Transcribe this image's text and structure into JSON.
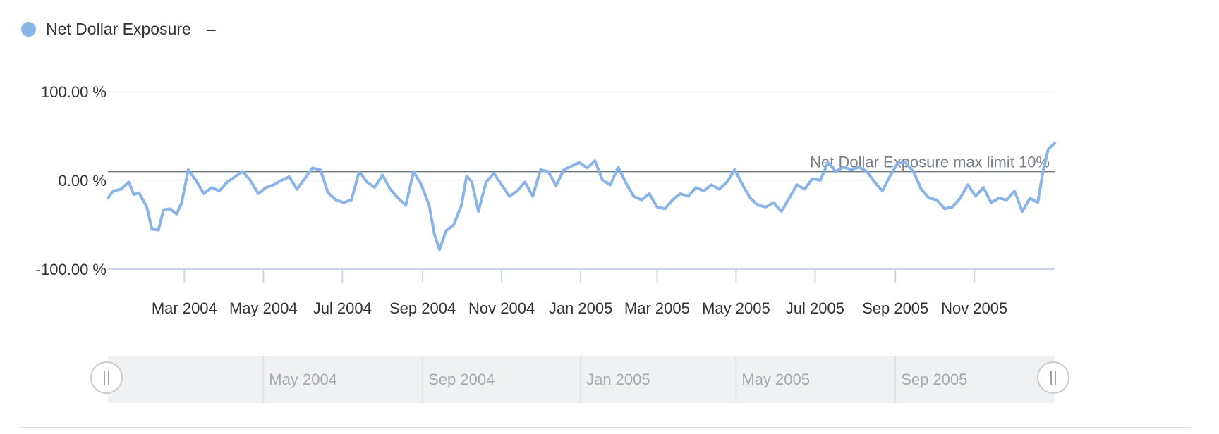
{
  "legend": {
    "label": "Net Dollar Exposure",
    "dash": "–",
    "color": "#8ab4e8"
  },
  "plot_line": {
    "label": "Net Dollar Exposure max limit 10%",
    "value": 10,
    "color": "#707880"
  },
  "navigator": {
    "labels": [
      {
        "date": "2004-05-01",
        "text": "May 2004"
      },
      {
        "date": "2004-09-01",
        "text": "Sep 2004"
      },
      {
        "date": "2005-01-01",
        "text": "Jan 2005"
      },
      {
        "date": "2005-05-01",
        "text": "May 2005"
      },
      {
        "date": "2005-09-01",
        "text": "Sep 2005"
      }
    ]
  },
  "chart_data": {
    "type": "line",
    "x_start": "2004-01-02",
    "x_end": "2006-01-02",
    "ylim": [
      -100,
      100
    ],
    "y_ticks": [
      {
        "value": 100,
        "label": "100.00 %"
      },
      {
        "value": 0,
        "label": "0.00 %"
      },
      {
        "value": -100,
        "label": "-100.00 %"
      }
    ],
    "x_ticks": [
      {
        "date": "2004-03-01",
        "label": "Mar 2004"
      },
      {
        "date": "2004-05-01",
        "label": "May 2004"
      },
      {
        "date": "2004-07-01",
        "label": "Jul 2004"
      },
      {
        "date": "2004-09-01",
        "label": "Sep 2004"
      },
      {
        "date": "2004-11-01",
        "label": "Nov 2004"
      },
      {
        "date": "2005-01-01",
        "label": "Jan 2005"
      },
      {
        "date": "2005-03-01",
        "label": "Mar 2005"
      },
      {
        "date": "2005-05-01",
        "label": "May 2005"
      },
      {
        "date": "2005-07-01",
        "label": "Jul 2005"
      },
      {
        "date": "2005-09-01",
        "label": "Sep 2005"
      },
      {
        "date": "2005-11-01",
        "label": "Nov 2005"
      }
    ],
    "grid": true,
    "series": [
      {
        "name": "Net Dollar Exposure",
        "color": "#8ab4e8",
        "points": [
          [
            "2004-01-02",
            -20
          ],
          [
            "2004-01-06",
            -12
          ],
          [
            "2004-01-12",
            -10
          ],
          [
            "2004-01-18",
            -2
          ],
          [
            "2004-01-22",
            -16
          ],
          [
            "2004-01-26",
            -14
          ],
          [
            "2004-02-01",
            -30
          ],
          [
            "2004-02-05",
            -55
          ],
          [
            "2004-02-10",
            -56
          ],
          [
            "2004-02-14",
            -33
          ],
          [
            "2004-02-19",
            -32
          ],
          [
            "2004-02-24",
            -38
          ],
          [
            "2004-02-28",
            -25
          ],
          [
            "2004-03-04",
            12
          ],
          [
            "2004-03-10",
            0
          ],
          [
            "2004-03-16",
            -15
          ],
          [
            "2004-03-22",
            -8
          ],
          [
            "2004-03-28",
            -12
          ],
          [
            "2004-04-03",
            -2
          ],
          [
            "2004-04-09",
            4
          ],
          [
            "2004-04-15",
            10
          ],
          [
            "2004-04-21",
            0
          ],
          [
            "2004-04-27",
            -15
          ],
          [
            "2004-05-03",
            -8
          ],
          [
            "2004-05-09",
            -5
          ],
          [
            "2004-05-15",
            0
          ],
          [
            "2004-05-21",
            4
          ],
          [
            "2004-05-27",
            -10
          ],
          [
            "2004-06-02",
            2
          ],
          [
            "2004-06-08",
            14
          ],
          [
            "2004-06-14",
            12
          ],
          [
            "2004-06-20",
            -14
          ],
          [
            "2004-06-26",
            -22
          ],
          [
            "2004-07-02",
            -25
          ],
          [
            "2004-07-08",
            -22
          ],
          [
            "2004-07-14",
            10
          ],
          [
            "2004-07-20",
            -2
          ],
          [
            "2004-07-26",
            -8
          ],
          [
            "2004-08-01",
            6
          ],
          [
            "2004-08-07",
            -10
          ],
          [
            "2004-08-13",
            -20
          ],
          [
            "2004-08-19",
            -28
          ],
          [
            "2004-08-25",
            10
          ],
          [
            "2004-08-31",
            -5
          ],
          [
            "2004-09-06",
            -28
          ],
          [
            "2004-09-10",
            -60
          ],
          [
            "2004-09-14",
            -78
          ],
          [
            "2004-09-19",
            -57
          ],
          [
            "2004-09-25",
            -50
          ],
          [
            "2004-10-01",
            -28
          ],
          [
            "2004-10-05",
            5
          ],
          [
            "2004-10-09",
            -2
          ],
          [
            "2004-10-14",
            -35
          ],
          [
            "2004-10-20",
            -2
          ],
          [
            "2004-10-26",
            8
          ],
          [
            "2004-11-01",
            -5
          ],
          [
            "2004-11-07",
            -18
          ],
          [
            "2004-11-13",
            -12
          ],
          [
            "2004-11-19",
            -2
          ],
          [
            "2004-11-25",
            -18
          ],
          [
            "2004-12-01",
            12
          ],
          [
            "2004-12-07",
            10
          ],
          [
            "2004-12-13",
            -6
          ],
          [
            "2004-12-19",
            12
          ],
          [
            "2004-12-25",
            16
          ],
          [
            "2004-12-31",
            20
          ],
          [
            "2005-01-06",
            14
          ],
          [
            "2005-01-12",
            22
          ],
          [
            "2005-01-18",
            0
          ],
          [
            "2005-01-24",
            -5
          ],
          [
            "2005-01-30",
            15
          ],
          [
            "2005-02-05",
            -3
          ],
          [
            "2005-02-11",
            -18
          ],
          [
            "2005-02-17",
            -22
          ],
          [
            "2005-02-23",
            -15
          ],
          [
            "2005-03-01",
            -30
          ],
          [
            "2005-03-07",
            -32
          ],
          [
            "2005-03-13",
            -22
          ],
          [
            "2005-03-19",
            -15
          ],
          [
            "2005-03-25",
            -18
          ],
          [
            "2005-03-31",
            -8
          ],
          [
            "2005-04-06",
            -12
          ],
          [
            "2005-04-12",
            -5
          ],
          [
            "2005-04-18",
            -10
          ],
          [
            "2005-04-24",
            -2
          ],
          [
            "2005-04-30",
            12
          ],
          [
            "2005-05-06",
            -5
          ],
          [
            "2005-05-12",
            -20
          ],
          [
            "2005-05-18",
            -28
          ],
          [
            "2005-05-24",
            -30
          ],
          [
            "2005-05-30",
            -25
          ],
          [
            "2005-06-05",
            -35
          ],
          [
            "2005-06-11",
            -20
          ],
          [
            "2005-06-17",
            -5
          ],
          [
            "2005-06-23",
            -10
          ],
          [
            "2005-06-29",
            2
          ],
          [
            "2005-07-05",
            0
          ],
          [
            "2005-07-11",
            20
          ],
          [
            "2005-07-17",
            10
          ],
          [
            "2005-07-23",
            15
          ],
          [
            "2005-07-29",
            12
          ],
          [
            "2005-08-04",
            15
          ],
          [
            "2005-08-10",
            10
          ],
          [
            "2005-08-16",
            -2
          ],
          [
            "2005-08-22",
            -12
          ],
          [
            "2005-08-28",
            5
          ],
          [
            "2005-09-03",
            20
          ],
          [
            "2005-09-09",
            20
          ],
          [
            "2005-09-15",
            10
          ],
          [
            "2005-09-21",
            -10
          ],
          [
            "2005-09-27",
            -20
          ],
          [
            "2005-10-03",
            -22
          ],
          [
            "2005-10-09",
            -32
          ],
          [
            "2005-10-15",
            -30
          ],
          [
            "2005-10-21",
            -20
          ],
          [
            "2005-10-27",
            -5
          ],
          [
            "2005-11-02",
            -18
          ],
          [
            "2005-11-08",
            -8
          ],
          [
            "2005-11-14",
            -25
          ],
          [
            "2005-11-20",
            -20
          ],
          [
            "2005-11-26",
            -22
          ],
          [
            "2005-12-02",
            -12
          ],
          [
            "2005-12-08",
            -35
          ],
          [
            "2005-12-14",
            -20
          ],
          [
            "2005-12-20",
            -25
          ],
          [
            "2005-12-24",
            10
          ],
          [
            "2005-12-28",
            35
          ],
          [
            "2006-01-02",
            42
          ]
        ]
      }
    ]
  }
}
